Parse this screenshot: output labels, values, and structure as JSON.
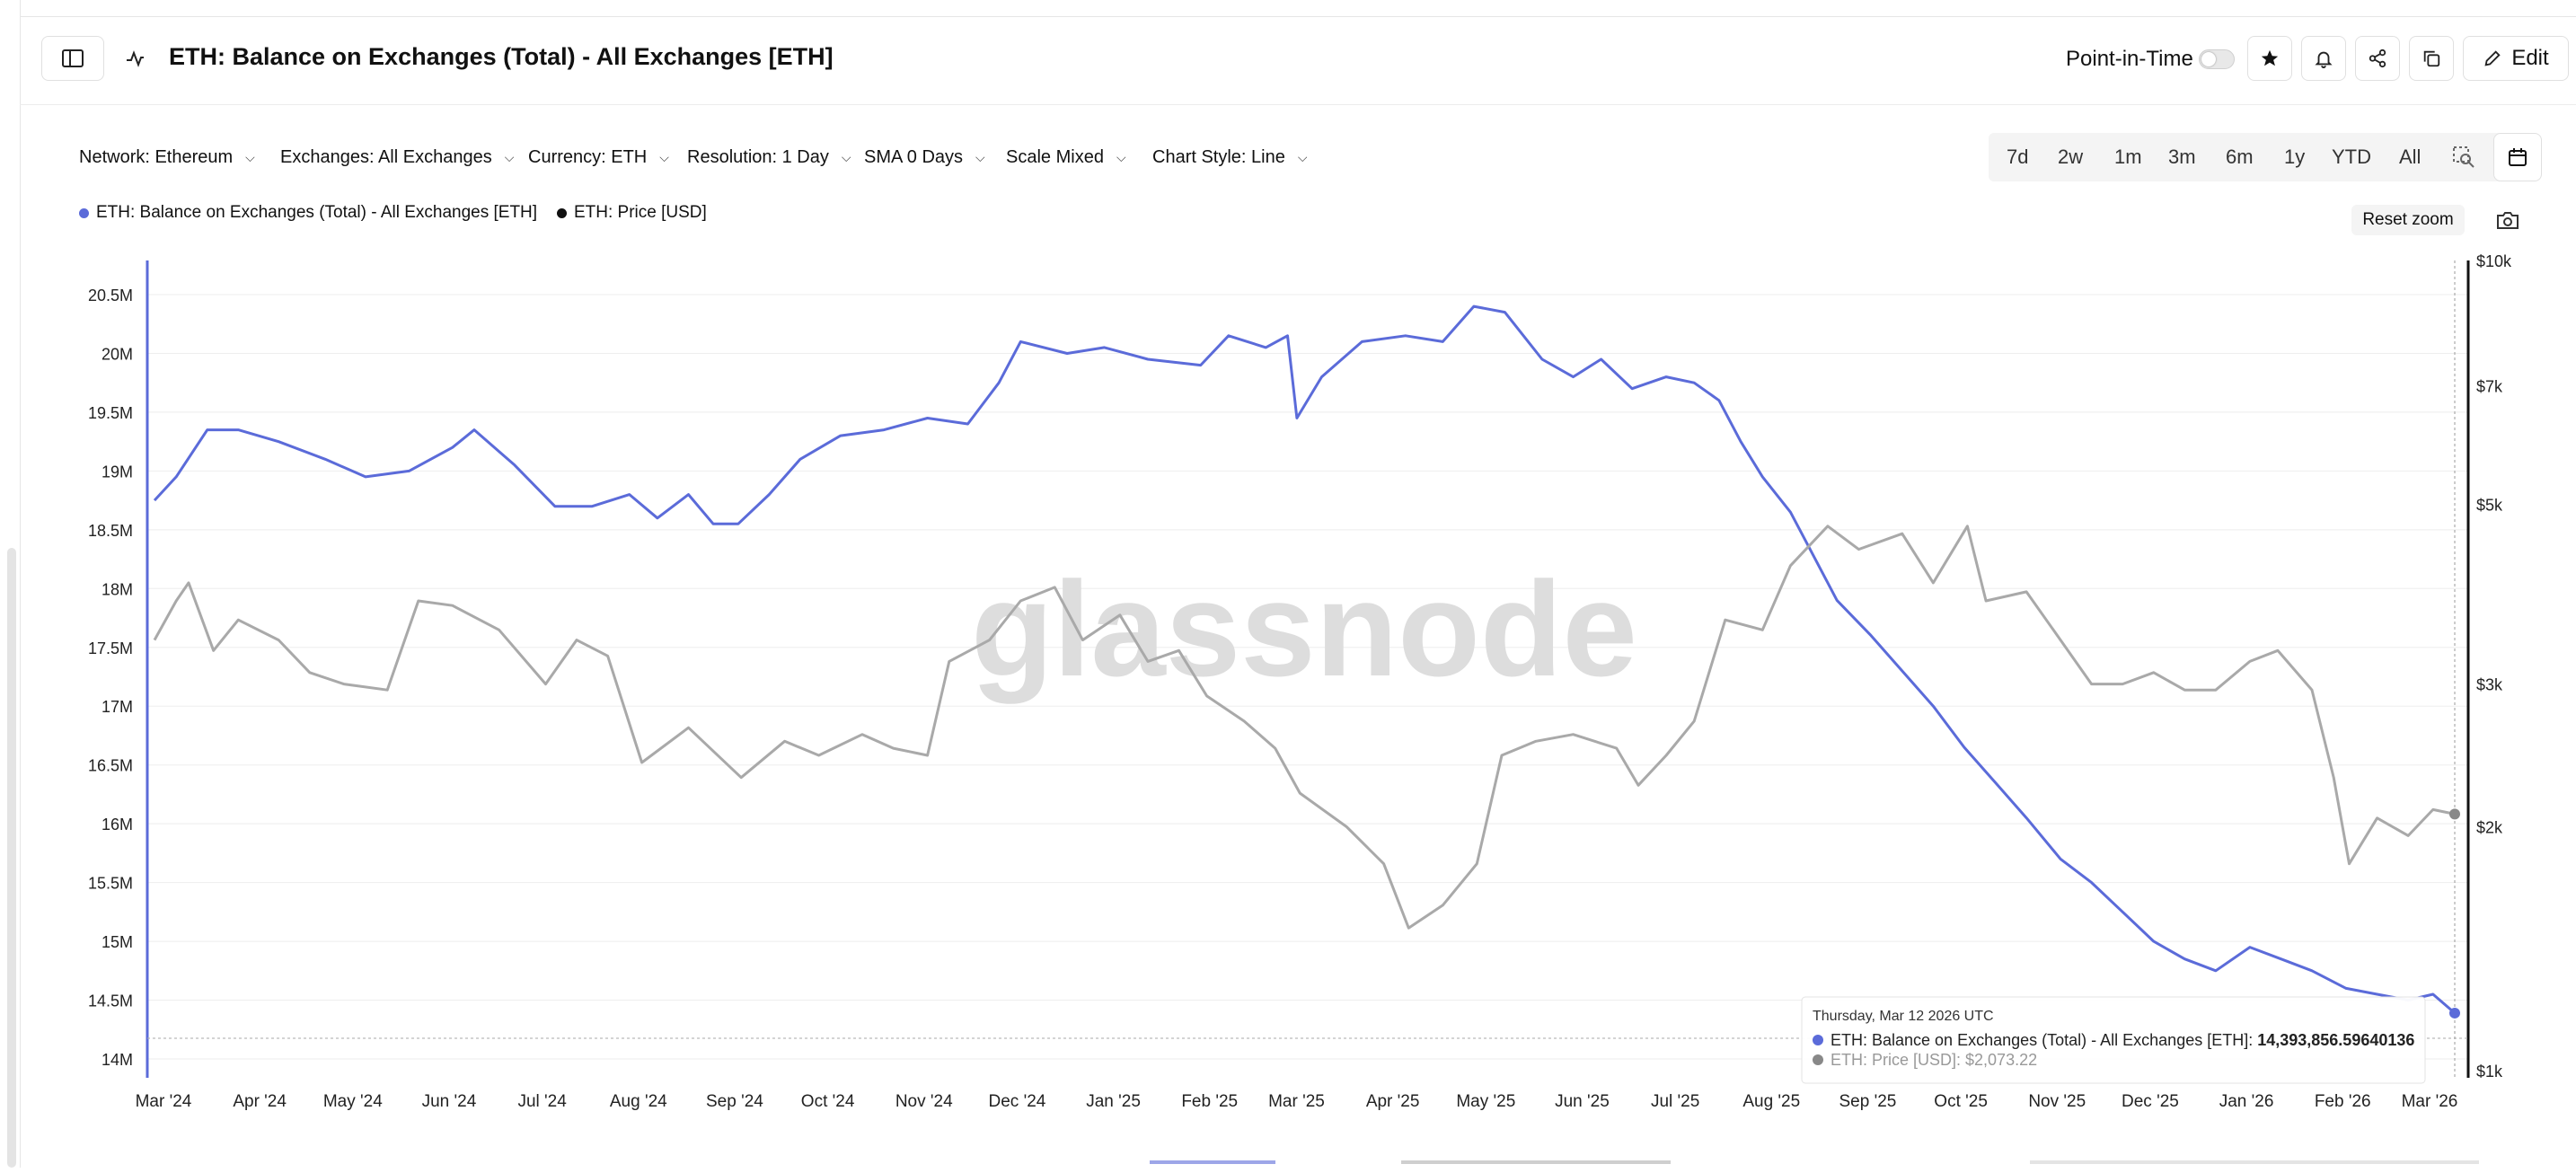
{
  "header": {
    "title": "ETH: Balance on Exchanges (Total) - All Exchanges [ETH]",
    "point_in_time_label": "Point-in-Time",
    "point_in_time_enabled": false,
    "edit_label": "Edit"
  },
  "controls": {
    "network": "Network: Ethereum",
    "exchanges": "Exchanges: All Exchanges",
    "currency": "Currency: ETH",
    "resolution": "Resolution: 1 Day",
    "sma": "SMA 0 Days",
    "scale": "Scale Mixed",
    "chart_style": "Chart Style: Line"
  },
  "ranges": [
    "7d",
    "2w",
    "1m",
    "3m",
    "6m",
    "1y",
    "YTD",
    "All"
  ],
  "legend": {
    "balance": "ETH: Balance on Exchanges (Total) - All Exchanges [ETH]",
    "price": "ETH: Price [USD]"
  },
  "reset_zoom": "Reset zoom",
  "watermark": "glassnode",
  "colors": {
    "balance": "#5b6bd9",
    "price": "#a9a9a9",
    "accent": "#111111"
  },
  "icons": [
    "sidebar-toggle-icon",
    "chart-line-icon",
    "star-icon",
    "bell-icon",
    "share-icon",
    "copy-icon",
    "pencil-icon",
    "zoom-select-icon",
    "calendar-icon",
    "camera-icon",
    "chevron-down-icon"
  ],
  "tooltip": {
    "date": "Thursday, Mar 12 2026 UTC",
    "balance_label": "ETH: Balance on Exchanges (Total) - All Exchanges [ETH]:",
    "balance_value": "14,393,856.59640136",
    "price_label": "ETH: Price [USD]:",
    "price_value": "$2,073.22"
  },
  "chart_data": {
    "type": "line",
    "x_labels": [
      "Mar '24",
      "Apr '24",
      "May '24",
      "Jun '24",
      "Jul '24",
      "Aug '24",
      "Sep '24",
      "Oct '24",
      "Nov '24",
      "Dec '24",
      "Jan '25",
      "Feb '25",
      "Mar '25",
      "Apr '25",
      "May '25",
      "Jun '25",
      "Jul '25",
      "Aug '25",
      "Sep '25",
      "Oct '25",
      "Nov '25",
      "Dec '25",
      "Jan '26",
      "Feb '26",
      "Mar '26"
    ],
    "y_left_ticks": [
      "20.5M",
      "20M",
      "19.5M",
      "19M",
      "18.5M",
      "18M",
      "17.5M",
      "17M",
      "16.5M",
      "16M",
      "15.5M",
      "15M",
      "14.5M",
      "14M"
    ],
    "y_left_range": [
      14000000,
      20500000
    ],
    "y_right_ticks": [
      "$10k",
      "$7k",
      "$5k",
      "$3k",
      "$2k",
      "$1k"
    ],
    "y_right_range": [
      1000,
      10000
    ],
    "y_right_scale": "log",
    "grid": true,
    "series": [
      {
        "name": "ETH: Balance on Exchanges (Total) - All Exchanges [ETH]",
        "axis": "left",
        "points": [
          [
            "2024-03-01",
            18750000
          ],
          [
            "2024-03-08",
            18950000
          ],
          [
            "2024-03-18",
            19350000
          ],
          [
            "2024-03-28",
            19350000
          ],
          [
            "2024-04-10",
            19250000
          ],
          [
            "2024-04-25",
            19100000
          ],
          [
            "2024-05-08",
            18950000
          ],
          [
            "2024-05-22",
            19000000
          ],
          [
            "2024-06-05",
            19200000
          ],
          [
            "2024-06-12",
            19350000
          ],
          [
            "2024-06-25",
            19050000
          ],
          [
            "2024-07-08",
            18700000
          ],
          [
            "2024-07-20",
            18700000
          ],
          [
            "2024-08-01",
            18800000
          ],
          [
            "2024-08-10",
            18600000
          ],
          [
            "2024-08-20",
            18800000
          ],
          [
            "2024-08-28",
            18550000
          ],
          [
            "2024-09-05",
            18550000
          ],
          [
            "2024-09-15",
            18800000
          ],
          [
            "2024-09-25",
            19100000
          ],
          [
            "2024-10-08",
            19300000
          ],
          [
            "2024-10-22",
            19350000
          ],
          [
            "2024-11-05",
            19450000
          ],
          [
            "2024-11-18",
            19400000
          ],
          [
            "2024-11-28",
            19750000
          ],
          [
            "2024-12-05",
            20100000
          ],
          [
            "2024-12-20",
            20000000
          ],
          [
            "2025-01-01",
            20050000
          ],
          [
            "2025-01-15",
            19950000
          ],
          [
            "2025-02-01",
            19900000
          ],
          [
            "2025-02-10",
            20150000
          ],
          [
            "2025-02-22",
            20050000
          ],
          [
            "2025-03-01",
            20150000
          ],
          [
            "2025-03-04",
            19450000
          ],
          [
            "2025-03-12",
            19800000
          ],
          [
            "2025-03-25",
            20100000
          ],
          [
            "2025-04-08",
            20150000
          ],
          [
            "2025-04-20",
            20100000
          ],
          [
            "2025-04-30",
            20400000
          ],
          [
            "2025-05-10",
            20350000
          ],
          [
            "2025-05-22",
            19950000
          ],
          [
            "2025-06-01",
            19800000
          ],
          [
            "2025-06-10",
            19950000
          ],
          [
            "2025-06-20",
            19700000
          ],
          [
            "2025-07-01",
            19800000
          ],
          [
            "2025-07-10",
            19750000
          ],
          [
            "2025-07-18",
            19600000
          ],
          [
            "2025-07-25",
            19250000
          ],
          [
            "2025-08-01",
            18950000
          ],
          [
            "2025-08-10",
            18650000
          ],
          [
            "2025-08-15",
            18400000
          ],
          [
            "2025-08-25",
            17900000
          ],
          [
            "2025-09-05",
            17600000
          ],
          [
            "2025-09-15",
            17300000
          ],
          [
            "2025-09-25",
            17000000
          ],
          [
            "2025-10-05",
            16650000
          ],
          [
            "2025-10-15",
            16350000
          ],
          [
            "2025-10-25",
            16050000
          ],
          [
            "2025-11-05",
            15700000
          ],
          [
            "2025-11-15",
            15500000
          ],
          [
            "2025-11-25",
            15250000
          ],
          [
            "2025-12-05",
            15000000
          ],
          [
            "2025-12-15",
            14850000
          ],
          [
            "2025-12-25",
            14750000
          ],
          [
            "2026-01-05",
            14950000
          ],
          [
            "2026-01-15",
            14850000
          ],
          [
            "2026-01-25",
            14750000
          ],
          [
            "2026-02-05",
            14600000
          ],
          [
            "2026-02-15",
            14550000
          ],
          [
            "2026-02-25",
            14500000
          ],
          [
            "2026-03-05",
            14550000
          ],
          [
            "2026-03-12",
            14390000
          ]
        ]
      },
      {
        "name": "ETH: Price [USD]",
        "axis": "right",
        "points": [
          [
            "2024-03-01",
            3400
          ],
          [
            "2024-03-08",
            3800
          ],
          [
            "2024-03-12",
            4000
          ],
          [
            "2024-03-20",
            3300
          ],
          [
            "2024-03-28",
            3600
          ],
          [
            "2024-04-10",
            3400
          ],
          [
            "2024-04-20",
            3100
          ],
          [
            "2024-05-01",
            3000
          ],
          [
            "2024-05-15",
            2950
          ],
          [
            "2024-05-25",
            3800
          ],
          [
            "2024-06-05",
            3750
          ],
          [
            "2024-06-20",
            3500
          ],
          [
            "2024-07-05",
            3000
          ],
          [
            "2024-07-15",
            3400
          ],
          [
            "2024-07-25",
            3250
          ],
          [
            "2024-08-05",
            2400
          ],
          [
            "2024-08-20",
            2650
          ],
          [
            "2024-09-06",
            2300
          ],
          [
            "2024-09-20",
            2550
          ],
          [
            "2024-10-01",
            2450
          ],
          [
            "2024-10-15",
            2600
          ],
          [
            "2024-10-25",
            2500
          ],
          [
            "2024-11-05",
            2450
          ],
          [
            "2024-11-12",
            3200
          ],
          [
            "2024-11-25",
            3400
          ],
          [
            "2024-12-05",
            3800
          ],
          [
            "2024-12-16",
            3950
          ],
          [
            "2024-12-25",
            3400
          ],
          [
            "2025-01-06",
            3650
          ],
          [
            "2025-01-15",
            3200
          ],
          [
            "2025-01-25",
            3300
          ],
          [
            "2025-02-03",
            2900
          ],
          [
            "2025-02-15",
            2700
          ],
          [
            "2025-02-25",
            2500
          ],
          [
            "2025-03-05",
            2200
          ],
          [
            "2025-03-20",
            2000
          ],
          [
            "2025-04-01",
            1800
          ],
          [
            "2025-04-09",
            1500
          ],
          [
            "2025-04-20",
            1600
          ],
          [
            "2025-05-01",
            1800
          ],
          [
            "2025-05-09",
            2450
          ],
          [
            "2025-05-20",
            2550
          ],
          [
            "2025-06-01",
            2600
          ],
          [
            "2025-06-15",
            2500
          ],
          [
            "2025-06-22",
            2250
          ],
          [
            "2025-07-01",
            2450
          ],
          [
            "2025-07-10",
            2700
          ],
          [
            "2025-07-20",
            3600
          ],
          [
            "2025-08-01",
            3500
          ],
          [
            "2025-08-10",
            4200
          ],
          [
            "2025-08-22",
            4700
          ],
          [
            "2025-09-01",
            4400
          ],
          [
            "2025-09-15",
            4600
          ],
          [
            "2025-09-25",
            4000
          ],
          [
            "2025-10-06",
            4700
          ],
          [
            "2025-10-12",
            3800
          ],
          [
            "2025-10-25",
            3900
          ],
          [
            "2025-11-05",
            3400
          ],
          [
            "2025-11-15",
            3000
          ],
          [
            "2025-11-25",
            3000
          ],
          [
            "2025-12-05",
            3100
          ],
          [
            "2025-12-15",
            2950
          ],
          [
            "2025-12-25",
            2950
          ],
          [
            "2026-01-05",
            3200
          ],
          [
            "2026-01-14",
            3300
          ],
          [
            "2026-01-25",
            2950
          ],
          [
            "2026-02-01",
            2300
          ],
          [
            "2026-02-06",
            1800
          ],
          [
            "2026-02-15",
            2050
          ],
          [
            "2026-02-25",
            1950
          ],
          [
            "2026-03-05",
            2100
          ],
          [
            "2026-03-12",
            2073
          ]
        ]
      }
    ]
  }
}
